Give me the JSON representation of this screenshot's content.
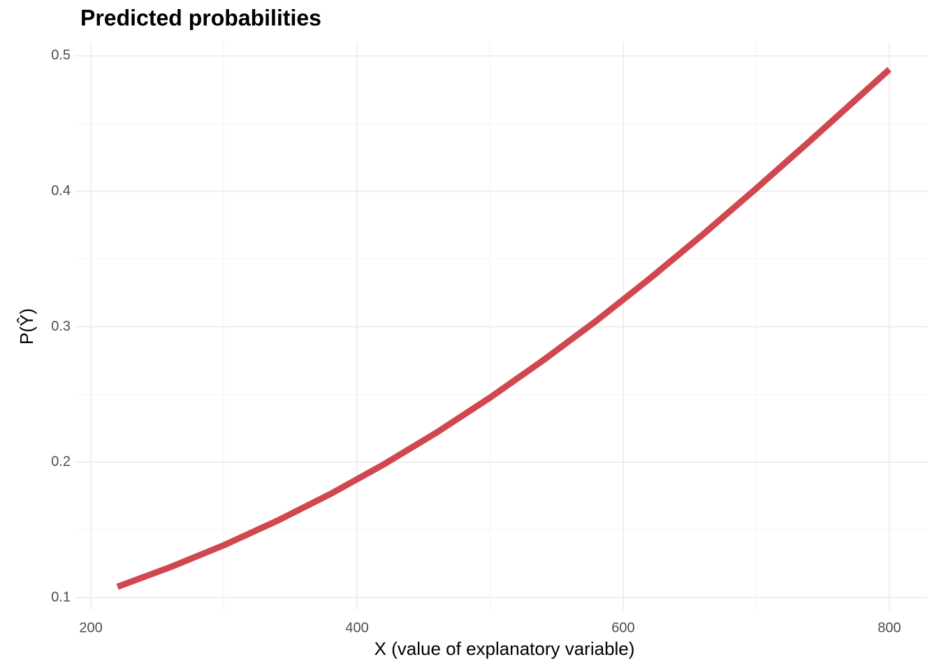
{
  "chart_data": {
    "type": "line",
    "title": "Predicted probabilities",
    "x_label": "X (value of explanatory variable)",
    "y_label": "P(Ŷ)",
    "x": [
      220,
      260,
      300,
      340,
      380,
      420,
      460,
      500,
      540,
      580,
      620,
      660,
      700,
      740,
      780,
      800
    ],
    "series": [
      {
        "name": "P(Ŷ)",
        "color": "#d1474f",
        "values": [
          0.108,
          0.1226,
          0.1387,
          0.1567,
          0.1765,
          0.1983,
          0.222,
          0.2477,
          0.2753,
          0.3045,
          0.3356,
          0.3682,
          0.4021,
          0.4369,
          0.4723,
          0.49
        ]
      }
    ],
    "xlim": [
      187.9,
      828.9
    ],
    "xticks": [
      200,
      400,
      600,
      800
    ],
    "ylim": [
      0.0907,
      0.5103
    ],
    "yticks": [
      0.1,
      0.2,
      0.3,
      0.4,
      0.5
    ],
    "grid": true
  }
}
